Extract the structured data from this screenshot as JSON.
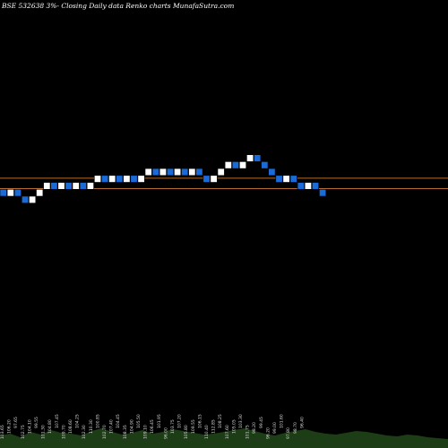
{
  "title": "BSE 532638 3%-  Closing Daily data  Renko  charts MunafaSutra.com",
  "chart_data": {
    "type": "renko",
    "title": "BSE 532638 3%-  Closing Daily data  Renko  charts MunafaSutra.com",
    "bricks": [
      {
        "dir": "down",
        "close": 99.0
      },
      {
        "dir": "up",
        "close": 101.0
      },
      {
        "dir": "down",
        "close": 99.0
      },
      {
        "dir": "down",
        "close": 97.0
      },
      {
        "dir": "up",
        "close": 99.0
      },
      {
        "dir": "up",
        "close": 101.0
      },
      {
        "dir": "up",
        "close": 103.0
      },
      {
        "dir": "down",
        "close": 101.0
      },
      {
        "dir": "up",
        "close": 103.0
      },
      {
        "dir": "down",
        "close": 101.0
      },
      {
        "dir": "up",
        "close": 103.0
      },
      {
        "dir": "down",
        "close": 101.0
      },
      {
        "dir": "up",
        "close": 103.0
      },
      {
        "dir": "up",
        "close": 105.0
      },
      {
        "dir": "down",
        "close": 103.0
      },
      {
        "dir": "up",
        "close": 105.0
      },
      {
        "dir": "down",
        "close": 103.0
      },
      {
        "dir": "up",
        "close": 105.0
      },
      {
        "dir": "down",
        "close": 103.0
      },
      {
        "dir": "up",
        "close": 105.0
      },
      {
        "dir": "up",
        "close": 107.0
      },
      {
        "dir": "down",
        "close": 105.0
      },
      {
        "dir": "up",
        "close": 107.0
      },
      {
        "dir": "down",
        "close": 105.0
      },
      {
        "dir": "up",
        "close": 107.0
      },
      {
        "dir": "down",
        "close": 105.0
      },
      {
        "dir": "up",
        "close": 107.0
      },
      {
        "dir": "down",
        "close": 105.0
      },
      {
        "dir": "down",
        "close": 103.0
      },
      {
        "dir": "up",
        "close": 105.0
      },
      {
        "dir": "up",
        "close": 107.0
      },
      {
        "dir": "up",
        "close": 109.0
      },
      {
        "dir": "down",
        "close": 107.0
      },
      {
        "dir": "up",
        "close": 109.0
      },
      {
        "dir": "up",
        "close": 111.0
      },
      {
        "dir": "down",
        "close": 109.0
      },
      {
        "dir": "down",
        "close": 107.0
      },
      {
        "dir": "down",
        "close": 105.0
      },
      {
        "dir": "down",
        "close": 103.0
      },
      {
        "dir": "up",
        "close": 105.0
      },
      {
        "dir": "down",
        "close": 103.0
      },
      {
        "dir": "down",
        "close": 101.0
      },
      {
        "dir": "up",
        "close": 103.0
      },
      {
        "dir": "down",
        "close": 101.0
      },
      {
        "dir": "down",
        "close": 99.0
      }
    ],
    "reference_lines": [
      {
        "value": 104.2,
        "color": "#b86b2e"
      },
      {
        "value": 101.2,
        "color": "#b86b2e"
      }
    ],
    "ylim": [
      0,
      200
    ],
    "volume": [
      14,
      16,
      12,
      18,
      15,
      20,
      17,
      16,
      14,
      19,
      22,
      18,
      15,
      17,
      20,
      16,
      18,
      21,
      19,
      17,
      15,
      16,
      18,
      20,
      22,
      19,
      16,
      14,
      17,
      19,
      21,
      18,
      16,
      15,
      17,
      19,
      18,
      16,
      14,
      13,
      15,
      14,
      12,
      11,
      10
    ],
    "volume_labels": [
      "103.65",
      "106.20",
      "97.65",
      "102.75",
      "104.10",
      "99.55",
      "101.30",
      "104.80",
      "107.45",
      "109.70",
      "108.60",
      "104.25",
      "102.30",
      "110.30",
      "100.85",
      "102.70",
      "107.40",
      "104.45",
      "108.35",
      "104.90",
      "105.50",
      "109.10",
      "106.45",
      "101.95",
      "96.00",
      "103.75",
      "107.20",
      "105.80",
      "109.55",
      "106.15",
      "110.40",
      "112.85",
      "108.25",
      "107.60",
      "105.05",
      "103.30",
      "101.75",
      "98.20",
      "99.45",
      "96.20",
      "99.00",
      "101.60",
      "97.80",
      "98.70",
      "96.40"
    ],
    "colors": {
      "up": "#ffffff",
      "down": "#1a6bd8",
      "volume": "#1c3d15",
      "background": "#000000"
    }
  }
}
